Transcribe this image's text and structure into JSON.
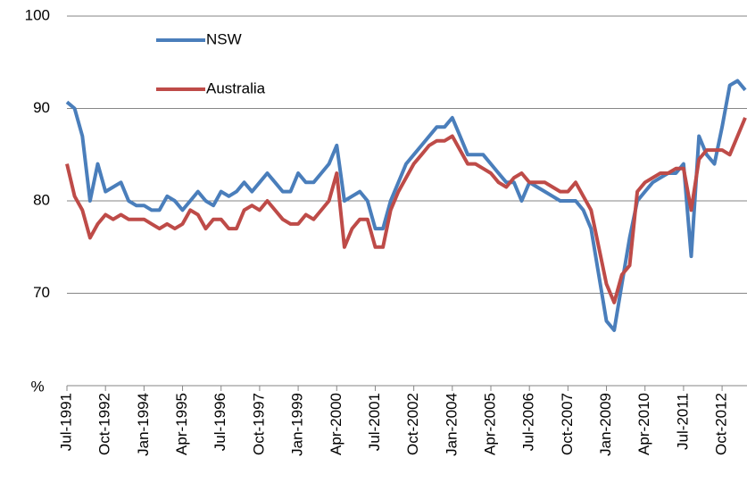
{
  "chart_data": {
    "type": "line",
    "y_label": "%",
    "categories": [
      "Jul-1991",
      null,
      null,
      null,
      null,
      "Oct-1992",
      null,
      null,
      null,
      null,
      "Jan-1994",
      null,
      null,
      null,
      null,
      "Apr-1995",
      null,
      null,
      null,
      null,
      "Jul-1996",
      null,
      null,
      null,
      null,
      "Oct-1997",
      null,
      null,
      null,
      null,
      "Jan-1999",
      null,
      null,
      null,
      null,
      "Apr-2000",
      null,
      null,
      null,
      null,
      "Jul-2001",
      null,
      null,
      null,
      null,
      "Oct-2002",
      null,
      null,
      null,
      null,
      "Jan-2004",
      null,
      null,
      null,
      null,
      "Apr-2005",
      null,
      null,
      null,
      null,
      "Jul-2006",
      null,
      null,
      null,
      null,
      "Oct-2007",
      null,
      null,
      null,
      null,
      "Jan-2009",
      null,
      null,
      null,
      null,
      "Apr-2010",
      null,
      null,
      null,
      null,
      "Jul-2011",
      null,
      null,
      null,
      null,
      "Oct-2012",
      null,
      null,
      null
    ],
    "series": [
      {
        "name": "NSW",
        "color": "#4a7ebb",
        "values": [
          90.7,
          90,
          87,
          80,
          84,
          81,
          81.5,
          82,
          80,
          79.5,
          79.5,
          79,
          79,
          80.5,
          80,
          79,
          80,
          81,
          80,
          79.5,
          81,
          80.5,
          81,
          82,
          81,
          82,
          83,
          82,
          81,
          81,
          83,
          82,
          82,
          83,
          84,
          86,
          80,
          80.5,
          81,
          80,
          77,
          77,
          80,
          82,
          84,
          85,
          86,
          87,
          88,
          88,
          89,
          87,
          85,
          85,
          85,
          84,
          83,
          82,
          82,
          80,
          82,
          81.5,
          81,
          80.5,
          80,
          80,
          80,
          79,
          77,
          72,
          67,
          66,
          71,
          76,
          80,
          81,
          82,
          82.5,
          83,
          83,
          84,
          74,
          87,
          85,
          84,
          88,
          92.5,
          93,
          92
        ]
      },
      {
        "name": "Australia",
        "color": "#be4b48",
        "values": [
          84,
          80.5,
          79,
          76,
          77.5,
          78.5,
          78,
          78.5,
          78,
          78,
          78,
          77.5,
          77,
          77.5,
          77,
          77.5,
          79,
          78.5,
          77,
          78,
          78,
          77,
          77,
          79,
          79.5,
          79,
          80,
          79,
          78,
          77.5,
          77.5,
          78.5,
          78,
          79,
          80,
          83,
          75,
          77,
          78,
          78,
          75,
          75,
          79,
          81,
          82.5,
          84,
          85,
          86,
          86.5,
          86.5,
          87,
          85.5,
          84,
          84,
          83.5,
          83,
          82,
          81.5,
          82.5,
          83,
          82,
          82,
          82,
          81.5,
          81,
          81,
          82,
          80.5,
          79,
          75,
          71,
          69,
          72,
          73,
          81,
          82,
          82.5,
          83,
          83,
          83.5,
          83.5,
          79,
          84.5,
          85.5,
          85.5,
          85.5,
          85,
          87,
          89
        ]
      }
    ],
    "ylim": [
      60,
      100
    ],
    "yticks": [
      70,
      80,
      90,
      100
    ],
    "grid": true,
    "legend": "upper left"
  }
}
